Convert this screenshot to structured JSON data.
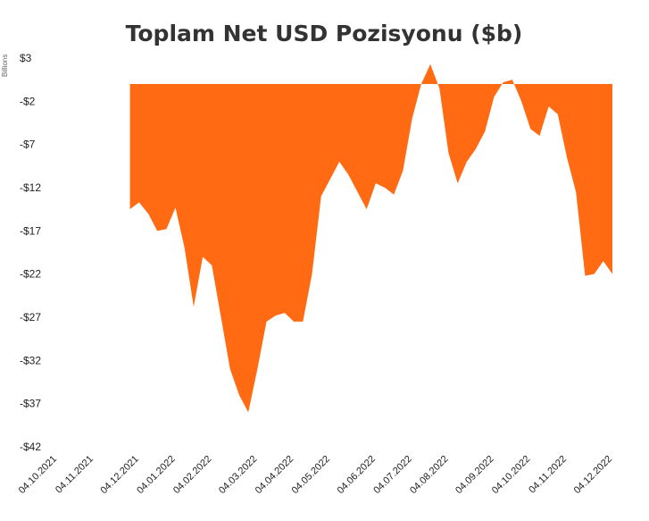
{
  "chart_data": {
    "type": "area",
    "title": "Toplam Net USD Pozisyonu ($b)",
    "y_axis_label": "Billions",
    "color": "#ff6a13",
    "categories": [
      "04.10.2021",
      null,
      null,
      null,
      "04.11.2021",
      null,
      null,
      null,
      null,
      "04.12.2021",
      null,
      null,
      null,
      "04.01.2022",
      null,
      null,
      null,
      "04.02.2022",
      null,
      null,
      null,
      null,
      "04.03.2022",
      null,
      null,
      null,
      "04.04.2022",
      null,
      null,
      null,
      "04.05.2022",
      null,
      null,
      null,
      null,
      "04.06.2022",
      null,
      null,
      null,
      "04.07.2022",
      null,
      null,
      null,
      "04.08.2022",
      null,
      null,
      null,
      null,
      "04.09.2022",
      null,
      null,
      null,
      "04.10.2022",
      null,
      null,
      null,
      "04.11.2022",
      null,
      null,
      null,
      null,
      "04.12.2022"
    ],
    "values": [
      null,
      null,
      null,
      null,
      null,
      null,
      null,
      null,
      -14.5,
      -13.7,
      -15,
      -17,
      -16.8,
      -14.3,
      -19,
      -25.8,
      -20,
      -21,
      -27,
      -33,
      -36,
      -38,
      -33,
      -27.5,
      -26.8,
      -26.5,
      -27.5,
      -27.5,
      -22,
      -13,
      -11,
      -9,
      -10.5,
      -12.5,
      -14.5,
      -11.5,
      -12,
      -12.8,
      -10,
      -4,
      0,
      2.3,
      -0.5,
      -8,
      -11.5,
      -9,
      -7.5,
      -5.5,
      -1.5,
      0.2,
      0.5,
      -2,
      -5.2,
      -6,
      -2.6,
      -3.5,
      -8.5,
      -12.5,
      -22.2,
      -22,
      -20.5,
      -22
    ],
    "ylim": [
      -42,
      3
    ],
    "yticks": [
      {
        "value": -42,
        "label": "-$42"
      },
      {
        "value": -37,
        "label": "-$37"
      },
      {
        "value": -32,
        "label": "-$32"
      },
      {
        "value": -27,
        "label": "-$27"
      },
      {
        "value": -22,
        "label": "-$22"
      },
      {
        "value": -17,
        "label": "-$17"
      },
      {
        "value": -12,
        "label": "-$12"
      },
      {
        "value": -7,
        "label": "-$7"
      },
      {
        "value": -2,
        "label": "-$2"
      },
      {
        "value": 3,
        "label": "$3"
      }
    ],
    "grid": false
  }
}
